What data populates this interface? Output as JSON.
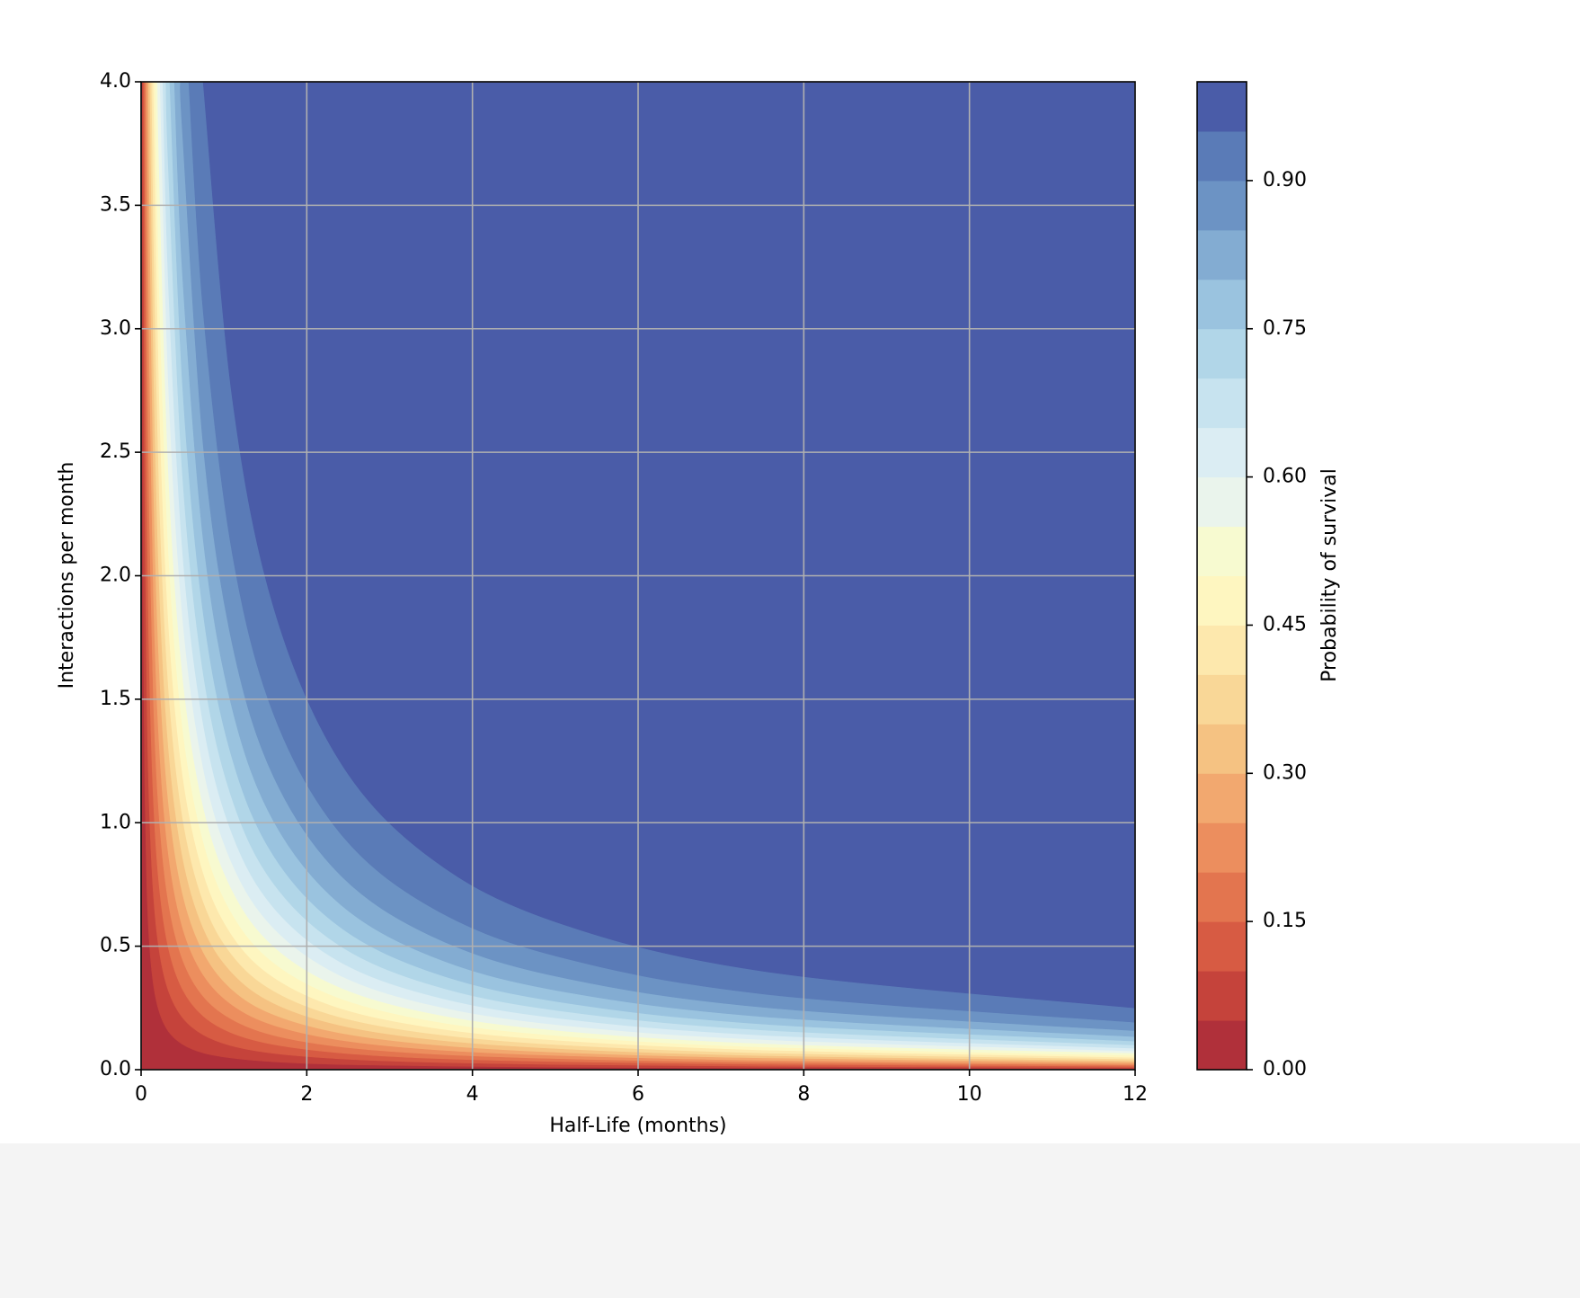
{
  "chart_data": {
    "type": "contourf",
    "xlabel": "Half-Life (months)",
    "ylabel": "Interactions per month",
    "xlim": [
      0,
      12
    ],
    "ylim": [
      0,
      4
    ],
    "xticks": [
      0,
      2,
      4,
      6,
      8,
      10,
      12
    ],
    "yticks": [
      {
        "value": 0,
        "label": "0.0"
      },
      0.5,
      {
        "value": 1,
        "label": "1.0"
      },
      1.5,
      {
        "value": 2,
        "label": "2.0"
      },
      2.5,
      {
        "value": 3,
        "label": "3.0"
      },
      3.5,
      {
        "value": 4,
        "label": "4.0"
      }
    ],
    "grid": true,
    "levels": [
      0,
      0.05,
      0.1,
      0.15,
      0.2,
      0.25,
      0.3,
      0.35,
      0.4,
      0.45,
      0.5,
      0.55,
      0.6,
      0.65,
      0.7,
      0.75,
      0.8,
      0.85,
      0.9,
      0.95,
      1
    ],
    "colors": [
      "#b0303a",
      "#c5433b",
      "#d75b43",
      "#e3754f",
      "#ec8e5e",
      "#f2a86f",
      "#f5c282",
      "#f9d797",
      "#fde8ad",
      "#fef6c0",
      "#f7fad0",
      "#eaf4ec",
      "#dbedf3",
      "#c7e3ef",
      "#b1d6e8",
      "#9ac3df",
      "#83acd2",
      "#6c93c4",
      "#5a7bb7",
      "#4a5ca8"
    ],
    "contours": [
      {
        "x": [
          0.0128,
          0.02,
          0.03,
          0.045,
          0.07,
          0.1,
          0.15,
          0.22,
          0.33,
          0.5,
          0.75,
          1.1,
          1.6,
          2.4,
          3.5,
          5,
          7.5,
          12
        ],
        "y": [
          4,
          2.565,
          1.71,
          1.14,
          0.733,
          0.513,
          0.342,
          0.233,
          0.155,
          0.103,
          0.068,
          0.047,
          0.032,
          0.021,
          0.015,
          0.01,
          0.007,
          0.004
        ]
      },
      {
        "x": [
          0.0264,
          0.03,
          0.045,
          0.07,
          0.1,
          0.15,
          0.22,
          0.33,
          0.5,
          0.75,
          1.1,
          1.6,
          2.4,
          3.5,
          5,
          7.5,
          12
        ],
        "y": [
          4,
          3.513,
          2.342,
          1.506,
          1.054,
          0.703,
          0.479,
          0.319,
          0.211,
          0.141,
          0.096,
          0.066,
          0.044,
          0.03,
          0.021,
          0.014,
          0.009
        ]
      },
      {
        "x": [
          0.0406,
          0.045,
          0.07,
          0.1,
          0.15,
          0.22,
          0.33,
          0.5,
          0.75,
          1.1,
          1.6,
          2.4,
          3.5,
          5,
          7.5,
          12
        ],
        "y": [
          4,
          3.611,
          2.321,
          1.625,
          1.083,
          0.739,
          0.492,
          0.325,
          0.217,
          0.148,
          0.102,
          0.068,
          0.046,
          0.033,
          0.022,
          0.014
        ]
      },
      {
        "x": [
          0.0558,
          0.07,
          0.1,
          0.15,
          0.22,
          0.33,
          0.5,
          0.75,
          1.1,
          1.6,
          2.4,
          3.5,
          5,
          7.5,
          12
        ],
        "y": [
          4,
          3.187,
          2.231,
          1.487,
          1.014,
          0.676,
          0.446,
          0.297,
          0.203,
          0.139,
          0.093,
          0.064,
          0.045,
          0.03,
          0.019
        ]
      },
      {
        "x": [
          0.0719,
          0.1,
          0.15,
          0.22,
          0.33,
          0.5,
          0.75,
          1.1,
          1.6,
          2.4,
          3.5,
          5,
          7.5,
          12
        ],
        "y": [
          4,
          2.877,
          1.918,
          1.308,
          0.872,
          0.575,
          0.384,
          0.262,
          0.18,
          0.12,
          0.082,
          0.058,
          0.038,
          0.024
        ]
      },
      {
        "x": [
          0.0892,
          0.1,
          0.15,
          0.22,
          0.33,
          0.5,
          0.75,
          1.1,
          1.6,
          2.4,
          3.5,
          5,
          7.5,
          12
        ],
        "y": [
          4,
          3.567,
          2.378,
          1.621,
          1.081,
          0.713,
          0.476,
          0.324,
          0.223,
          0.149,
          0.102,
          0.071,
          0.048,
          0.03
        ]
      },
      {
        "x": [
          0.1077,
          0.15,
          0.22,
          0.33,
          0.5,
          0.75,
          1.1,
          1.6,
          2.4,
          3.5,
          5,
          7.5,
          12
        ],
        "y": [
          4,
          2.872,
          1.958,
          1.305,
          0.862,
          0.574,
          0.392,
          0.269,
          0.18,
          0.123,
          0.086,
          0.057,
          0.036
        ]
      },
      {
        "x": [
          0.1277,
          0.15,
          0.22,
          0.33,
          0.5,
          0.75,
          1.1,
          1.6,
          2.4,
          3.5,
          5,
          7.5,
          12
        ],
        "y": [
          4,
          3.405,
          2.322,
          1.548,
          1.022,
          0.681,
          0.464,
          0.319,
          0.213,
          0.146,
          0.102,
          0.068,
          0.043
        ]
      },
      {
        "x": [
          0.1495,
          0.22,
          0.33,
          0.5,
          0.75,
          1.1,
          1.6,
          2.4,
          3.5,
          5,
          7.5,
          12
        ],
        "y": [
          4,
          2.717,
          1.812,
          1.196,
          0.797,
          0.543,
          0.374,
          0.249,
          0.171,
          0.12,
          0.08,
          0.05
        ]
      },
      {
        "x": [
          0.1733,
          0.22,
          0.33,
          0.5,
          0.75,
          1.1,
          1.6,
          2.4,
          3.5,
          5,
          7.5,
          12
        ],
        "y": [
          4,
          3.151,
          2.1,
          1.386,
          0.924,
          0.63,
          0.433,
          0.289,
          0.198,
          0.139,
          0.092,
          0.058
        ]
      },
      {
        "x": [
          0.1996,
          0.22,
          0.33,
          0.5,
          0.75,
          1.1,
          1.6,
          2.4,
          3.5,
          5,
          7.5,
          12
        ],
        "y": [
          4,
          3.63,
          2.42,
          1.597,
          1.065,
          0.726,
          0.499,
          0.333,
          0.228,
          0.16,
          0.106,
          0.067
        ]
      },
      {
        "x": [
          0.2291,
          0.33,
          0.5,
          0.75,
          1.1,
          1.6,
          2.4,
          3.5,
          5,
          7.5,
          12
        ],
        "y": [
          4,
          2.777,
          1.833,
          1.222,
          0.833,
          0.573,
          0.382,
          0.262,
          0.183,
          0.122,
          0.076
        ]
      },
      {
        "x": [
          0.2625,
          0.33,
          0.5,
          0.75,
          1.1,
          1.6,
          2.4,
          3.5,
          5,
          7.5,
          12
        ],
        "y": [
          4,
          3.181,
          2.1,
          1.4,
          0.954,
          0.656,
          0.437,
          0.3,
          0.21,
          0.14,
          0.087
        ]
      },
      {
        "x": [
          0.301,
          0.33,
          0.5,
          0.75,
          1.1,
          1.6,
          2.4,
          3.5,
          5,
          7.5,
          12
        ],
        "y": [
          4,
          3.648,
          2.408,
          1.605,
          1.095,
          0.753,
          0.502,
          0.344,
          0.241,
          0.161,
          0.1
        ]
      },
      {
        "x": [
          0.3466,
          0.5,
          0.75,
          1.1,
          1.6,
          2.4,
          3.5,
          5,
          7.5,
          12
        ],
        "y": [
          4,
          2.773,
          1.848,
          1.26,
          0.866,
          0.578,
          0.396,
          0.277,
          0.185,
          0.116
        ]
      },
      {
        "x": [
          0.4024,
          0.5,
          0.75,
          1.1,
          1.6,
          2.4,
          3.5,
          5,
          7.5,
          12
        ],
        "y": [
          4,
          3.219,
          2.146,
          1.463,
          1.006,
          0.671,
          0.46,
          0.322,
          0.215,
          0.134
        ]
      },
      {
        "x": [
          0.4743,
          0.5,
          0.75,
          1.1,
          1.6,
          2.4,
          3.5,
          5,
          7.5,
          12
        ],
        "y": [
          4,
          3.794,
          2.529,
          1.725,
          1.186,
          0.79,
          0.542,
          0.379,
          0.253,
          0.158
        ]
      },
      {
        "x": [
          0.5756,
          0.75,
          1.1,
          1.6,
          2.4,
          3.5,
          5,
          7.5,
          12
        ],
        "y": [
          4,
          3.07,
          2.093,
          1.439,
          0.959,
          0.658,
          0.461,
          0.307,
          0.192
        ]
      },
      {
        "x": [
          0.7489,
          1.1,
          1.6,
          2.4,
          3.5,
          5,
          7.5,
          12
        ],
        "y": [
          4,
          2.723,
          1.872,
          1.248,
          0.856,
          0.599,
          0.399,
          0.25
        ]
      }
    ],
    "colorbar": {
      "label": "Probability of survival",
      "lim": [
        0,
        1
      ],
      "ticks": [
        {
          "value": 0,
          "label": "0.00"
        },
        0.15,
        {
          "value": 0.3,
          "label": "0.30"
        },
        0.45,
        {
          "value": 0.6,
          "label": "0.60"
        },
        0.75,
        {
          "value": 0.9,
          "label": "0.90"
        }
      ]
    }
  }
}
